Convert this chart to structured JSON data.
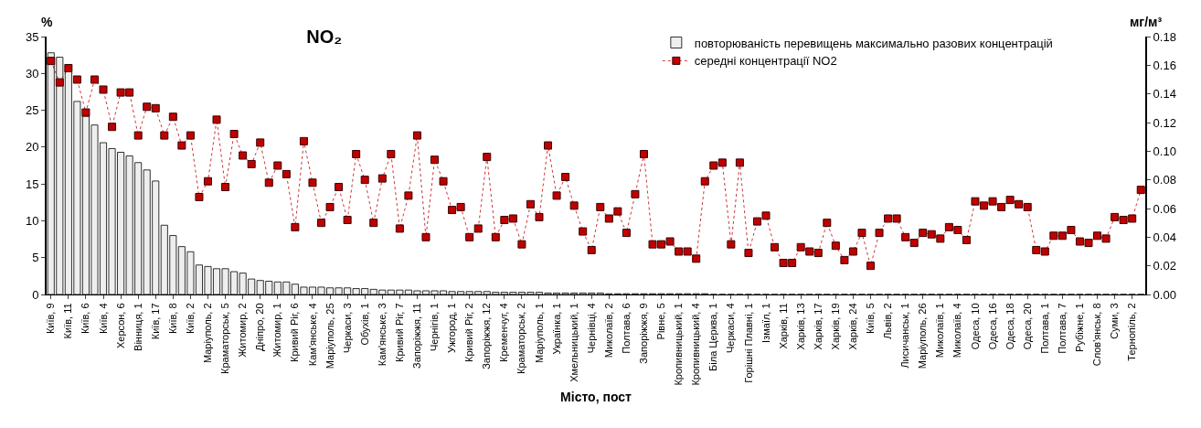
{
  "chart_data": {
    "type": "bar",
    "title": "NO₂",
    "xlabel": "Місто, пост",
    "ylabel": "%",
    "y2label": "мг/м³",
    "categories": [
      "Київ, 9",
      null,
      "Київ, 11",
      null,
      "Київ, 6",
      null,
      "Київ, 4",
      null,
      "Херсон, 6",
      null,
      "Вінниця, 1",
      null,
      "Київ, 17",
      null,
      "Київ, 8",
      null,
      "Київ, 2",
      null,
      "Маріуполь, 2",
      null,
      "Краматорськ, 5",
      null,
      "Житомир, 2",
      null,
      "Дніпро, 20",
      null,
      "Житомир, 1",
      null,
      "Кривий Ріг, 6",
      null,
      "Кам'янське, 4",
      null,
      "Маріуполь, 25",
      null,
      "Черкаси, 3",
      null,
      "Обухів, 1",
      null,
      "Кам'янське, 3",
      null,
      "Кривий Ріг, 7",
      null,
      "Запоріжжя, 11",
      null,
      "Чернігів, 1",
      null,
      "Ужгород, 1",
      null,
      "Кривий Ріг, 2",
      null,
      "Запоріжжя, 12",
      null,
      "Кременчуг, 4",
      null,
      "Краматорськ, 2",
      null,
      "Маріуполь, 1",
      null,
      "Українка, 1",
      null,
      "Хмельницький, 1",
      null,
      "Чернівці, 4",
      null,
      "Миколаїв, 2",
      null,
      "Полтава, 6",
      null,
      "Запоріжжя, 9",
      null,
      "Рівне, 5",
      null,
      "Кропивницький, 1",
      null,
      "Кропивницький, 4",
      null,
      "Біла Церква, 1",
      null,
      "Черкаси, 4",
      null,
      "Горішні Плавні, 1",
      null,
      "Ізмаїл, 1",
      null,
      "Харків, 11",
      null,
      "Харків, 13",
      null,
      "Харків, 17",
      null,
      "Харків, 19",
      null,
      "Харків, 24",
      null,
      "Київ, 5",
      null,
      "Львів, 2",
      null,
      "Лисичанськ, 1",
      null,
      "Маріуполь, 26",
      null,
      "Миколаїв, 1",
      null,
      "Миколаїв, 4",
      null,
      "Одеса, 10",
      null,
      "Одеса, 16",
      null,
      "Одеса, 18",
      null,
      "Одеса, 20",
      null,
      "Полтава, 1",
      null,
      "Полтава, 7",
      null,
      "Рубіжне, 1",
      null,
      "Слов'янськ, 8",
      null,
      "Суми, 3",
      null,
      "Тернопіль, 2",
      null
    ],
    "series": [
      {
        "name": "повторюваність перевищень максимально разових концентрацій",
        "color": "#eeeeee",
        "values": [
          32.8,
          32.2,
          30.4,
          26.2,
          24.2,
          23.0,
          20.6,
          19.8,
          19.3,
          18.8,
          17.9,
          16.9,
          15.4,
          9.4,
          8.0,
          6.5,
          5.8,
          4.0,
          3.8,
          3.5,
          3.5,
          3.1,
          2.9,
          2.1,
          1.9,
          1.8,
          1.7,
          1.7,
          1.4,
          1.0,
          1.0,
          1.0,
          0.9,
          0.9,
          0.9,
          0.8,
          0.8,
          0.7,
          0.6,
          0.6,
          0.6,
          0.6,
          0.5,
          0.5,
          0.5,
          0.5,
          0.4,
          0.4,
          0.4,
          0.4,
          0.4,
          0.3,
          0.3,
          0.3,
          0.3,
          0.3,
          0.3,
          0.2,
          0.2,
          0.2,
          0.2,
          0.2,
          0.2,
          0.2,
          0.1,
          0.1,
          0.1,
          0.1,
          0.1,
          0.1,
          0.1,
          0.1,
          0.1,
          0.1,
          0.1,
          0.1,
          0,
          0,
          0,
          0,
          0,
          0,
          0,
          0,
          0,
          0,
          0,
          0,
          0,
          0,
          0,
          0,
          0,
          0,
          0,
          0,
          0,
          0,
          0,
          0,
          0,
          0,
          0,
          0,
          0,
          0,
          0,
          0,
          0,
          0,
          0,
          0,
          0,
          0,
          0,
          0,
          0,
          0,
          0,
          0,
          0,
          0,
          0,
          0,
          0,
          0
        ]
      },
      {
        "name": "середні концентрації NO2",
        "type": "line",
        "axis": "y2",
        "color": "#c00000",
        "values": [
          0.163,
          0.148,
          0.158,
          0.15,
          0.127,
          0.15,
          0.143,
          0.117,
          0.141,
          0.141,
          0.111,
          0.131,
          0.13,
          0.111,
          0.124,
          0.104,
          0.111,
          0.068,
          0.079,
          0.122,
          0.075,
          0.112,
          0.097,
          0.091,
          0.106,
          0.078,
          0.09,
          0.084,
          0.047,
          0.107,
          0.078,
          0.05,
          0.061,
          0.075,
          0.052,
          0.098,
          0.08,
          0.05,
          0.081,
          0.098,
          0.046,
          0.069,
          0.111,
          0.04,
          0.094,
          0.079,
          0.059,
          0.061,
          0.04,
          0.046,
          0.096,
          0.04,
          0.052,
          0.053,
          0.035,
          0.063,
          0.054,
          0.104,
          0.069,
          0.082,
          0.062,
          0.044,
          0.031,
          0.061,
          0.053,
          0.058,
          0.043,
          0.07,
          0.098,
          0.035,
          0.035,
          0.037,
          0.03,
          0.03,
          0.025,
          0.079,
          0.09,
          0.092,
          0.035,
          0.092,
          0.029,
          0.051,
          0.055,
          0.033,
          0.022,
          0.022,
          0.033,
          0.03,
          0.029,
          0.05,
          0.034,
          0.024,
          0.03,
          0.043,
          0.02,
          0.043,
          0.053,
          0.053,
          0.04,
          0.036,
          0.043,
          0.042,
          0.039,
          0.047,
          0.045,
          0.038,
          0.065,
          0.062,
          0.065,
          0.061,
          0.066,
          0.063,
          0.061,
          0.031,
          0.03,
          0.041,
          0.041,
          0.045,
          0.037,
          0.036,
          0.041,
          0.039,
          0.054,
          0.052,
          0.053,
          0.073
        ]
      }
    ],
    "ylim": [
      0,
      35
    ],
    "yticks": [
      0,
      5,
      10,
      15,
      20,
      25,
      30,
      35
    ],
    "y2lim": [
      0,
      0.18
    ],
    "y2ticks": [
      {
        "value": 0,
        "label": "0.00"
      },
      {
        "value": 0.02,
        "label": "0.02"
      },
      {
        "value": 0.04,
        "label": "0.04"
      },
      {
        "value": 0.06,
        "label": "0.06"
      },
      {
        "value": 0.08,
        "label": "0.08"
      },
      {
        "value": 0.1,
        "label": "0.10"
      },
      {
        "value": 0.12,
        "label": "0.12"
      },
      {
        "value": 0.14,
        "label": "0.14"
      },
      {
        "value": 0.16,
        "label": "0.16"
      },
      {
        "value": 0.18,
        "label": "0.18"
      }
    ],
    "marker": "square",
    "line_style": "dotted",
    "legend": "top right",
    "grid": false
  }
}
